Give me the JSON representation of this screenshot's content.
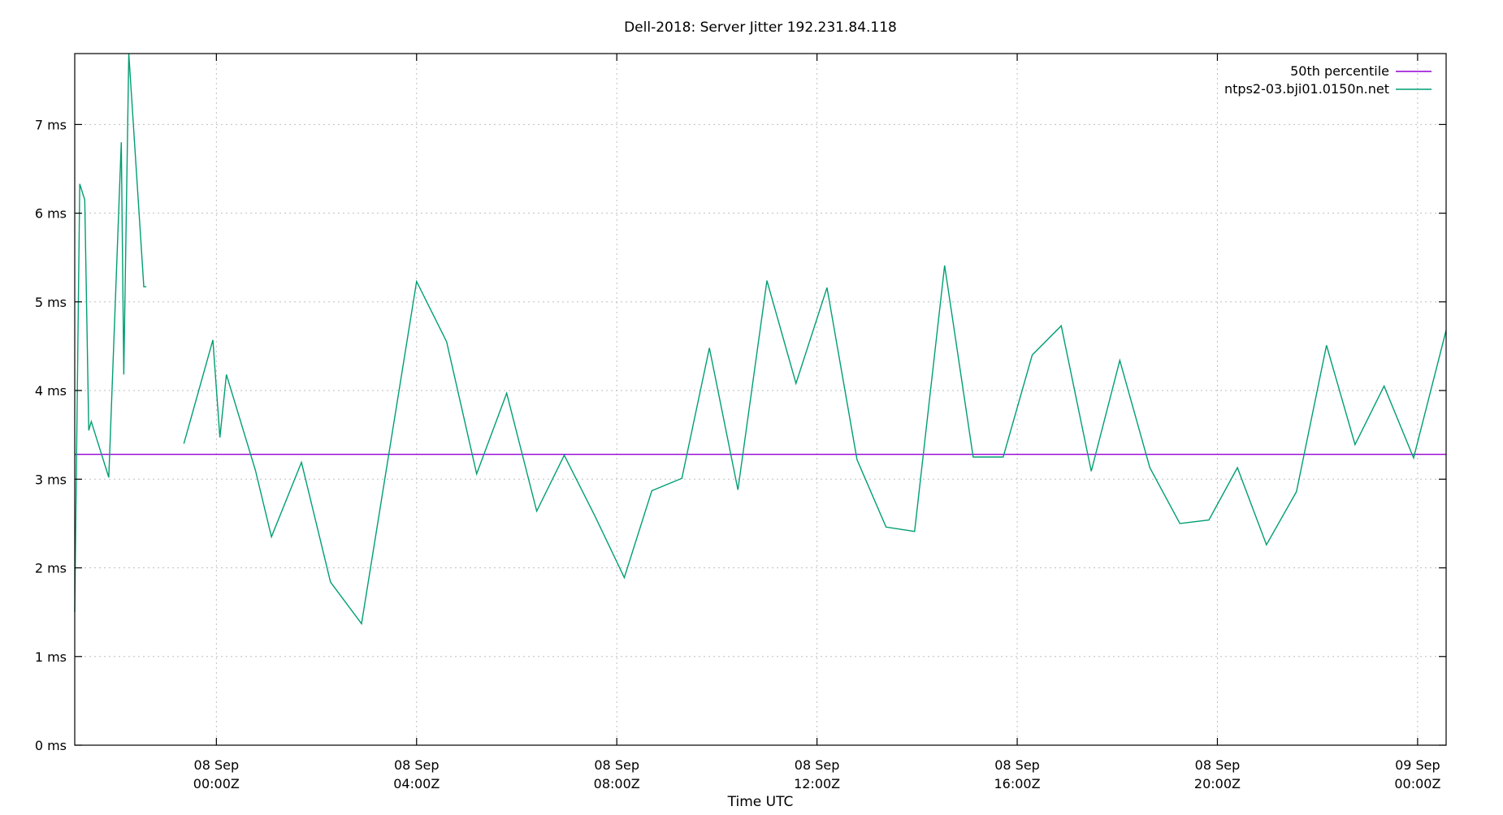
{
  "chart_data": {
    "type": "line",
    "title": "Dell-2018: Server Jitter 192.231.84.118",
    "xlabel": "Time UTC",
    "ylabel": "",
    "x_unit": "hours relative to 08 Sep 00:00Z",
    "xlim": [
      -2.83,
      24.57
    ],
    "ylim": [
      0,
      7.8
    ],
    "y_ticks": [
      {
        "value": 0,
        "label": "0 ms"
      },
      {
        "value": 1,
        "label": "1 ms"
      },
      {
        "value": 2,
        "label": "2 ms"
      },
      {
        "value": 3,
        "label": "3 ms"
      },
      {
        "value": 4,
        "label": "4 ms"
      },
      {
        "value": 5,
        "label": "5 ms"
      },
      {
        "value": 6,
        "label": "6 ms"
      },
      {
        "value": 7,
        "label": "7 ms"
      }
    ],
    "x_ticks": [
      {
        "value": 0,
        "line1": "08 Sep",
        "line2": "00:00Z"
      },
      {
        "value": 4,
        "line1": "08 Sep",
        "line2": "04:00Z"
      },
      {
        "value": 8,
        "line1": "08 Sep",
        "line2": "08:00Z"
      },
      {
        "value": 12,
        "line1": "08 Sep",
        "line2": "12:00Z"
      },
      {
        "value": 16,
        "line1": "08 Sep",
        "line2": "16:00Z"
      },
      {
        "value": 20,
        "line1": "08 Sep",
        "line2": "20:00Z"
      },
      {
        "value": 24,
        "line1": "09 Sep",
        "line2": "00:00Z"
      }
    ],
    "grid": true,
    "legend_position": "top-right",
    "series": [
      {
        "name": "50th percentile",
        "color": "#9400d3",
        "kind": "constant",
        "value": 3.28
      },
      {
        "name": "ntps2-03.bji01.0150n.net",
        "color": "#009e73",
        "kind": "line",
        "segments": [
          [
            [
              -2.83,
              1.5
            ],
            [
              -2.73,
              6.33
            ],
            [
              -2.63,
              6.15
            ],
            [
              -2.55,
              3.55
            ],
            [
              -2.5,
              3.65
            ],
            [
              -2.15,
              3.02
            ],
            [
              -1.9,
              6.8
            ],
            [
              -1.85,
              4.18
            ],
            [
              -1.75,
              7.8
            ],
            [
              -1.45,
              5.17
            ],
            [
              -1.4,
              5.17
            ]
          ],
          [
            [
              -0.65,
              3.4
            ],
            [
              -0.07,
              4.57
            ],
            [
              0.07,
              3.47
            ],
            [
              0.2,
              4.18
            ],
            [
              0.78,
              3.1
            ],
            [
              1.1,
              2.35
            ],
            [
              1.7,
              3.19
            ],
            [
              2.28,
              1.84
            ],
            [
              2.9,
              1.37
            ],
            [
              3.45,
              3.3
            ],
            [
              4.0,
              5.23
            ],
            [
              4.6,
              4.55
            ],
            [
              5.2,
              3.06
            ],
            [
              5.8,
              3.97
            ],
            [
              6.4,
              2.64
            ],
            [
              6.95,
              3.27
            ],
            [
              7.55,
              2.6
            ],
            [
              8.15,
              1.89
            ],
            [
              8.7,
              2.87
            ],
            [
              9.3,
              3.01
            ],
            [
              9.85,
              4.48
            ],
            [
              10.42,
              2.88
            ],
            [
              11.0,
              5.24
            ],
            [
              11.58,
              4.08
            ],
            [
              12.2,
              5.16
            ],
            [
              12.8,
              3.22
            ],
            [
              13.38,
              2.46
            ],
            [
              13.95,
              2.41
            ],
            [
              14.55,
              5.41
            ],
            [
              15.12,
              3.25
            ],
            [
              15.72,
              3.25
            ],
            [
              16.3,
              4.4
            ],
            [
              16.88,
              4.73
            ],
            [
              17.48,
              3.09
            ],
            [
              18.05,
              4.34
            ],
            [
              18.65,
              3.13
            ],
            [
              19.25,
              2.5
            ],
            [
              19.83,
              2.54
            ],
            [
              20.4,
              3.13
            ],
            [
              20.98,
              2.26
            ],
            [
              21.58,
              2.86
            ],
            [
              22.18,
              4.51
            ],
            [
              22.75,
              3.39
            ],
            [
              23.33,
              4.05
            ],
            [
              23.92,
              3.24
            ],
            [
              24.57,
              4.68
            ]
          ]
        ]
      }
    ]
  }
}
